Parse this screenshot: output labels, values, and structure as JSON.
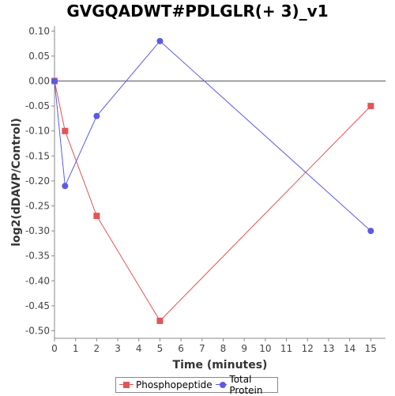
{
  "chart_data": {
    "type": "line",
    "title": "GVGQADWT#PDLGLR(+ 3)_v1",
    "xlabel": "Time (minutes)",
    "ylabel": "log2(dDAVP/Control)",
    "xlim": [
      0,
      15.7
    ],
    "ylim": [
      -0.515,
      0.11
    ],
    "x_ticks": [
      0,
      1,
      2,
      3,
      4,
      5,
      6,
      7,
      8,
      9,
      10,
      11,
      12,
      13,
      14,
      15
    ],
    "y_ticks": [
      0.1,
      0.05,
      0.0,
      -0.05,
      -0.1,
      -0.15,
      -0.2,
      -0.25,
      -0.3,
      -0.35,
      -0.4,
      -0.45,
      -0.5
    ],
    "reference_line_y": 0,
    "grid": false,
    "legend_position": "bottom",
    "series": [
      {
        "name": "Phosphopeptide",
        "color": "#e05555",
        "marker": "square",
        "x": [
          0,
          0.5,
          2,
          5,
          15
        ],
        "y": [
          0.0,
          -0.1,
          -0.27,
          -0.48,
          -0.05
        ]
      },
      {
        "name": "Total Protein",
        "color": "#5a5ae6",
        "marker": "circle",
        "x": [
          0,
          0.5,
          2,
          5,
          15
        ],
        "y": [
          0.0,
          -0.21,
          -0.07,
          0.08,
          -0.3
        ]
      }
    ]
  }
}
